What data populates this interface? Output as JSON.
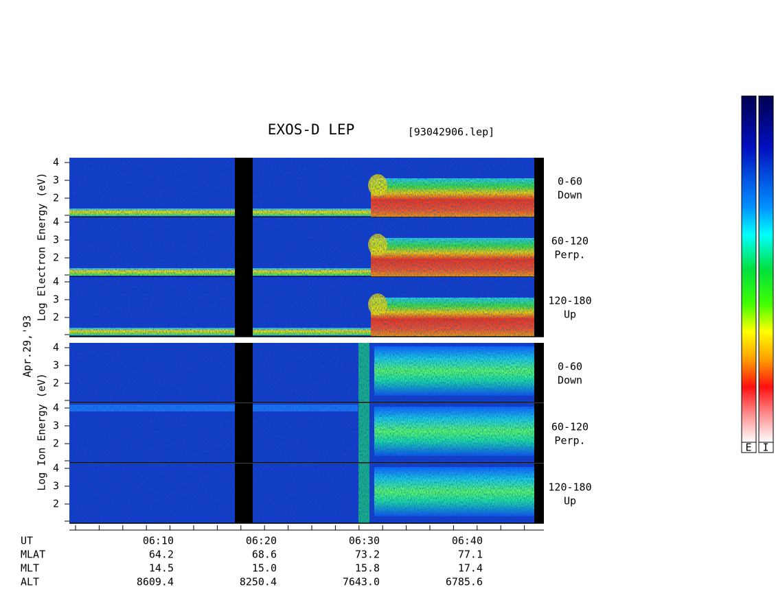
{
  "header": {
    "title": "EXOS-D LEP",
    "file": "[93042906.lep]"
  },
  "date": "Apr.29,'93",
  "yticks": [
    2,
    3,
    4
  ],
  "electron": {
    "axis_title": "Log Electron Energy (eV)",
    "panels": [
      {
        "angle": "0-60",
        "direction": "Down"
      },
      {
        "angle": "60-120",
        "direction": "Perp."
      },
      {
        "angle": "120-180",
        "direction": "Up"
      }
    ]
  },
  "ion": {
    "axis_title": "Log Ion Energy (eV)",
    "panels": [
      {
        "angle": "0-60",
        "direction": "Down"
      },
      {
        "angle": "60-120",
        "direction": "Perp."
      },
      {
        "angle": "120-180",
        "direction": "Up"
      }
    ]
  },
  "footer": {
    "rows": [
      {
        "name": "UT",
        "values": [
          "06:10",
          "06:20",
          "06:30",
          "06:40"
        ]
      },
      {
        "name": "MLAT",
        "values": [
          "64.2",
          "68.6",
          "73.2",
          "77.1"
        ]
      },
      {
        "name": "MLT",
        "values": [
          "14.5",
          "15.0",
          "15.8",
          "17.4"
        ]
      },
      {
        "name": "ALT",
        "values": [
          "8609.4",
          "8250.4",
          "7643.0",
          "6785.6"
        ]
      }
    ]
  },
  "colorbar": {
    "labels": [
      "E",
      "I"
    ]
  }
}
